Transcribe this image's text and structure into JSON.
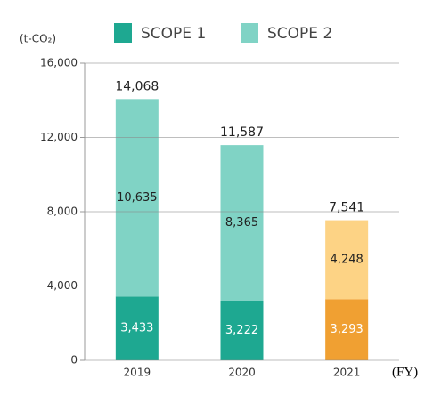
{
  "chart_data": {
    "type": "stacked_bar",
    "y_label": "(t-CO₂)",
    "x_label": "(FY)",
    "categories": [
      "2019",
      "2020",
      "2021"
    ],
    "series": [
      {
        "name": "SCOPE 1",
        "color": "#1ea891",
        "colors": [
          "#1ea891",
          "#1ea891",
          "#f0a032"
        ],
        "values": [
          3433,
          3222,
          3293
        ],
        "value_labels": [
          "3,433",
          "3,222",
          "3,293"
        ]
      },
      {
        "name": "SCOPE 2",
        "color": "#80d3c5",
        "colors": [
          "#80d3c5",
          "#80d3c5",
          "#fdd385"
        ],
        "values": [
          10635,
          8365,
          4248
        ],
        "value_labels": [
          "10,635",
          "8,365",
          "4,248"
        ]
      }
    ],
    "totals": {
      "values": [
        14068,
        11587,
        7541
      ],
      "value_labels": [
        "14,068",
        "11,587",
        "7,541"
      ]
    },
    "ylim": [
      0,
      16000
    ],
    "yticks": [
      0,
      {
        "value": 4000,
        "label": "4,000"
      },
      {
        "value": 8000,
        "label": "8,000"
      },
      {
        "value": 12000,
        "label": "12,000"
      },
      {
        "value": 16000,
        "label": "16,000"
      }
    ],
    "grid": true
  }
}
